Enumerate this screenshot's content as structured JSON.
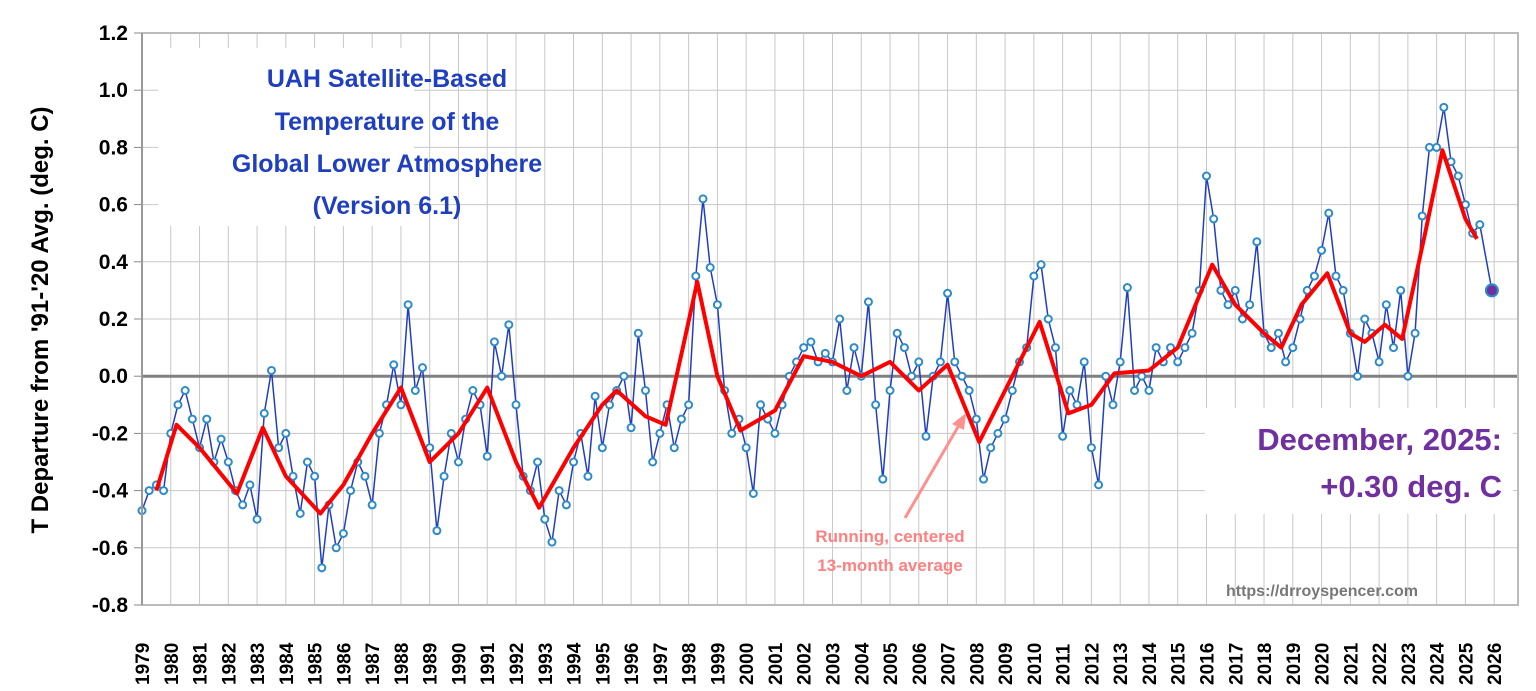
{
  "chart_data": {
    "type": "line",
    "title": [
      "UAH Satellite-Based",
      "Temperature of the",
      "Global Lower Atmosphere",
      "(Version 6.1)"
    ],
    "ylabel": "T Departure from '91-'20 Avg. (deg. C)",
    "xlabel": "",
    "ylim": [
      -0.8,
      1.2
    ],
    "xlim": [
      1979,
      2026.8
    ],
    "yticks": [
      "1.2",
      "1.0",
      "0.8",
      "0.6",
      "0.4",
      "0.2",
      "0.0",
      "-0.2",
      "-0.4",
      "-0.6",
      "-0.8"
    ],
    "xticks": [
      "1979",
      "1980",
      "1981",
      "1982",
      "1983",
      "1984",
      "1985",
      "1986",
      "1987",
      "1988",
      "1989",
      "1990",
      "1991",
      "1992",
      "1993",
      "1994",
      "1995",
      "1996",
      "1997",
      "1998",
      "1999",
      "2000",
      "2001",
      "2002",
      "2003",
      "2004",
      "2005",
      "2006",
      "2007",
      "2008",
      "2009",
      "2010",
      "2011",
      "2012",
      "2013",
      "2014",
      "2015",
      "2016",
      "2017",
      "2018",
      "2019",
      "2020",
      "2021",
      "2022",
      "2023",
      "2024",
      "2025",
      "2026"
    ],
    "grid": true,
    "colors": {
      "monthly": "#1f3fbf",
      "marker": "#2e8bc9",
      "smoothed": "#ff0000",
      "title": "#1f3fbf",
      "latest": "#7030a0",
      "annotation": "#ff8080",
      "zero_line": "#808080"
    },
    "series": [
      {
        "kind": "monthly",
        "points": [
          [
            1979.0,
            -0.47
          ],
          [
            1979.25,
            -0.4
          ],
          [
            1979.5,
            -0.38
          ],
          [
            1979.75,
            -0.4
          ],
          [
            1980.0,
            -0.2
          ],
          [
            1980.25,
            -0.1
          ],
          [
            1980.5,
            -0.05
          ],
          [
            1980.75,
            -0.15
          ],
          [
            1981.0,
            -0.25
          ],
          [
            1981.25,
            -0.15
          ],
          [
            1981.5,
            -0.3
          ],
          [
            1981.75,
            -0.22
          ],
          [
            1982.0,
            -0.3
          ],
          [
            1982.25,
            -0.4
          ],
          [
            1982.5,
            -0.45
          ],
          [
            1982.75,
            -0.38
          ],
          [
            1983.0,
            -0.5
          ],
          [
            1983.25,
            -0.13
          ],
          [
            1983.5,
            0.02
          ],
          [
            1983.75,
            -0.25
          ],
          [
            1984.0,
            -0.2
          ],
          [
            1984.25,
            -0.35
          ],
          [
            1984.5,
            -0.48
          ],
          [
            1984.75,
            -0.3
          ],
          [
            1985.0,
            -0.35
          ],
          [
            1985.25,
            -0.67
          ],
          [
            1985.5,
            -0.45
          ],
          [
            1985.75,
            -0.6
          ],
          [
            1986.0,
            -0.55
          ],
          [
            1986.25,
            -0.4
          ],
          [
            1986.5,
            -0.3
          ],
          [
            1986.75,
            -0.35
          ],
          [
            1987.0,
            -0.45
          ],
          [
            1987.25,
            -0.2
          ],
          [
            1987.5,
            -0.1
          ],
          [
            1987.75,
            0.04
          ],
          [
            1988.0,
            -0.1
          ],
          [
            1988.25,
            0.25
          ],
          [
            1988.5,
            -0.05
          ],
          [
            1988.75,
            0.03
          ],
          [
            1989.0,
            -0.25
          ],
          [
            1989.25,
            -0.54
          ],
          [
            1989.5,
            -0.35
          ],
          [
            1989.75,
            -0.2
          ],
          [
            1990.0,
            -0.3
          ],
          [
            1990.25,
            -0.15
          ],
          [
            1990.5,
            -0.05
          ],
          [
            1990.75,
            -0.1
          ],
          [
            1991.0,
            -0.28
          ],
          [
            1991.25,
            0.12
          ],
          [
            1991.5,
            0.0
          ],
          [
            1991.75,
            0.18
          ],
          [
            1992.0,
            -0.1
          ],
          [
            1992.25,
            -0.35
          ],
          [
            1992.5,
            -0.4
          ],
          [
            1992.75,
            -0.3
          ],
          [
            1993.0,
            -0.5
          ],
          [
            1993.25,
            -0.58
          ],
          [
            1993.5,
            -0.4
          ],
          [
            1993.75,
            -0.45
          ],
          [
            1994.0,
            -0.3
          ],
          [
            1994.25,
            -0.2
          ],
          [
            1994.5,
            -0.35
          ],
          [
            1994.75,
            -0.07
          ],
          [
            1995.0,
            -0.25
          ],
          [
            1995.25,
            -0.1
          ],
          [
            1995.5,
            -0.05
          ],
          [
            1995.75,
            0.0
          ],
          [
            1996.0,
            -0.18
          ],
          [
            1996.25,
            0.15
          ],
          [
            1996.5,
            -0.05
          ],
          [
            1996.75,
            -0.3
          ],
          [
            1997.0,
            -0.2
          ],
          [
            1997.25,
            -0.1
          ],
          [
            1997.5,
            -0.25
          ],
          [
            1997.75,
            -0.15
          ],
          [
            1998.0,
            -0.1
          ],
          [
            1998.25,
            0.35
          ],
          [
            1998.5,
            0.62
          ],
          [
            1998.75,
            0.38
          ],
          [
            1999.0,
            0.25
          ],
          [
            1999.25,
            -0.05
          ],
          [
            1999.5,
            -0.2
          ],
          [
            1999.75,
            -0.15
          ],
          [
            2000.0,
            -0.25
          ],
          [
            2000.25,
            -0.41
          ],
          [
            2000.5,
            -0.1
          ],
          [
            2000.75,
            -0.15
          ],
          [
            2001.0,
            -0.2
          ],
          [
            2001.25,
            -0.1
          ],
          [
            2001.5,
            0.0
          ],
          [
            2001.75,
            0.05
          ],
          [
            2002.0,
            0.1
          ],
          [
            2002.25,
            0.12
          ],
          [
            2002.5,
            0.05
          ],
          [
            2002.75,
            0.08
          ],
          [
            2003.0,
            0.05
          ],
          [
            2003.25,
            0.2
          ],
          [
            2003.5,
            -0.05
          ],
          [
            2003.75,
            0.1
          ],
          [
            2004.0,
            0.0
          ],
          [
            2004.25,
            0.26
          ],
          [
            2004.5,
            -0.1
          ],
          [
            2004.75,
            -0.36
          ],
          [
            2005.0,
            -0.05
          ],
          [
            2005.25,
            0.15
          ],
          [
            2005.5,
            0.1
          ],
          [
            2005.75,
            0.0
          ],
          [
            2006.0,
            0.05
          ],
          [
            2006.25,
            -0.21
          ],
          [
            2006.5,
            0.0
          ],
          [
            2006.75,
            0.05
          ],
          [
            2007.0,
            0.29
          ],
          [
            2007.25,
            0.05
          ],
          [
            2007.5,
            0.0
          ],
          [
            2007.75,
            -0.05
          ],
          [
            2008.0,
            -0.15
          ],
          [
            2008.25,
            -0.36
          ],
          [
            2008.5,
            -0.25
          ],
          [
            2008.75,
            -0.2
          ],
          [
            2009.0,
            -0.15
          ],
          [
            2009.25,
            -0.05
          ],
          [
            2009.5,
            0.05
          ],
          [
            2009.75,
            0.1
          ],
          [
            2010.0,
            0.35
          ],
          [
            2010.25,
            0.39
          ],
          [
            2010.5,
            0.2
          ],
          [
            2010.75,
            0.1
          ],
          [
            2011.0,
            -0.21
          ],
          [
            2011.25,
            -0.05
          ],
          [
            2011.5,
            -0.1
          ],
          [
            2011.75,
            0.05
          ],
          [
            2012.0,
            -0.25
          ],
          [
            2012.25,
            -0.38
          ],
          [
            2012.5,
            0.0
          ],
          [
            2012.75,
            -0.1
          ],
          [
            2013.0,
            0.05
          ],
          [
            2013.25,
            0.31
          ],
          [
            2013.5,
            -0.05
          ],
          [
            2013.75,
            0.0
          ],
          [
            2014.0,
            -0.05
          ],
          [
            2014.25,
            0.1
          ],
          [
            2014.5,
            0.05
          ],
          [
            2014.75,
            0.1
          ],
          [
            2015.0,
            0.05
          ],
          [
            2015.25,
            0.1
          ],
          [
            2015.5,
            0.15
          ],
          [
            2015.75,
            0.3
          ],
          [
            2016.0,
            0.7
          ],
          [
            2016.25,
            0.55
          ],
          [
            2016.5,
            0.3
          ],
          [
            2016.75,
            0.25
          ],
          [
            2017.0,
            0.3
          ],
          [
            2017.25,
            0.2
          ],
          [
            2017.5,
            0.25
          ],
          [
            2017.75,
            0.47
          ],
          [
            2018.0,
            0.15
          ],
          [
            2018.25,
            0.1
          ],
          [
            2018.5,
            0.15
          ],
          [
            2018.75,
            0.05
          ],
          [
            2019.0,
            0.1
          ],
          [
            2019.25,
            0.2
          ],
          [
            2019.5,
            0.3
          ],
          [
            2019.75,
            0.35
          ],
          [
            2020.0,
            0.44
          ],
          [
            2020.25,
            0.57
          ],
          [
            2020.5,
            0.35
          ],
          [
            2020.75,
            0.3
          ],
          [
            2021.0,
            0.15
          ],
          [
            2021.25,
            0.0
          ],
          [
            2021.5,
            0.2
          ],
          [
            2021.75,
            0.15
          ],
          [
            2022.0,
            0.05
          ],
          [
            2022.25,
            0.25
          ],
          [
            2022.5,
            0.1
          ],
          [
            2022.75,
            0.3
          ],
          [
            2023.0,
            0.0
          ],
          [
            2023.25,
            0.15
          ],
          [
            2023.5,
            0.56
          ],
          [
            2023.75,
            0.8
          ],
          [
            2024.0,
            0.8
          ],
          [
            2024.25,
            0.94
          ],
          [
            2024.5,
            0.75
          ],
          [
            2024.75,
            0.7
          ],
          [
            2025.0,
            0.6
          ],
          [
            2025.25,
            0.5
          ],
          [
            2025.5,
            0.53
          ],
          [
            2025.92,
            0.3
          ]
        ]
      },
      {
        "kind": "smoothed",
        "points": [
          [
            1979.5,
            -0.4
          ],
          [
            1980.2,
            -0.17
          ],
          [
            1981.0,
            -0.25
          ],
          [
            1982.3,
            -0.41
          ],
          [
            1983.2,
            -0.18
          ],
          [
            1984.0,
            -0.35
          ],
          [
            1985.2,
            -0.48
          ],
          [
            1986.0,
            -0.38
          ],
          [
            1987.0,
            -0.2
          ],
          [
            1988.0,
            -0.04
          ],
          [
            1989.0,
            -0.3
          ],
          [
            1990.0,
            -0.2
          ],
          [
            1991.0,
            -0.04
          ],
          [
            1992.0,
            -0.3
          ],
          [
            1992.8,
            -0.46
          ],
          [
            1994.0,
            -0.25
          ],
          [
            1995.0,
            -0.1
          ],
          [
            1995.5,
            -0.05
          ],
          [
            1996.5,
            -0.14
          ],
          [
            1997.2,
            -0.17
          ],
          [
            1997.8,
            0.1
          ],
          [
            1998.3,
            0.33
          ],
          [
            1999.0,
            0.0
          ],
          [
            1999.8,
            -0.19
          ],
          [
            2001.0,
            -0.12
          ],
          [
            2002.0,
            0.07
          ],
          [
            2003.0,
            0.05
          ],
          [
            2004.0,
            0.0
          ],
          [
            2005.0,
            0.05
          ],
          [
            2006.0,
            -0.05
          ],
          [
            2007.0,
            0.04
          ],
          [
            2008.1,
            -0.23
          ],
          [
            2009.0,
            -0.05
          ],
          [
            2010.2,
            0.19
          ],
          [
            2011.2,
            -0.13
          ],
          [
            2012.0,
            -0.1
          ],
          [
            2012.8,
            0.01
          ],
          [
            2014.0,
            0.02
          ],
          [
            2015.0,
            0.1
          ],
          [
            2016.2,
            0.39
          ],
          [
            2017.0,
            0.25
          ],
          [
            2018.0,
            0.15
          ],
          [
            2018.6,
            0.1
          ],
          [
            2019.3,
            0.25
          ],
          [
            2020.2,
            0.36
          ],
          [
            2021.0,
            0.15
          ],
          [
            2021.5,
            0.12
          ],
          [
            2022.2,
            0.18
          ],
          [
            2022.8,
            0.13
          ],
          [
            2023.6,
            0.5
          ],
          [
            2024.2,
            0.79
          ],
          [
            2025.0,
            0.55
          ],
          [
            2025.4,
            0.48
          ]
        ]
      }
    ],
    "latest": {
      "line1": "December, 2025:",
      "line2": "+0.30 deg. C",
      "x": 2025.92,
      "y": 0.3
    },
    "annotation": {
      "line1": "Running, centered",
      "line2": "13-month average"
    },
    "credit": "https://drroyspencer.com"
  }
}
